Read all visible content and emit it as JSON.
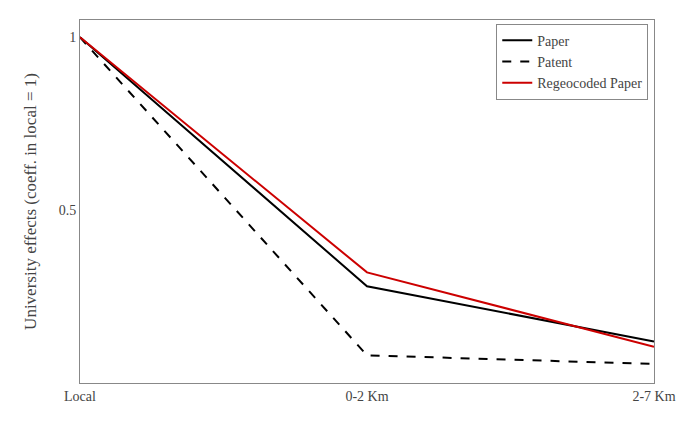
{
  "chart_data": {
    "type": "line",
    "categories": [
      "Local",
      "0-2 Km",
      "2-7 Km"
    ],
    "series": [
      {
        "name": "Paper",
        "values": [
          1.0,
          0.28,
          0.12
        ],
        "color": "#000000",
        "line_style": "solid"
      },
      {
        "name": "Patent",
        "values": [
          1.0,
          0.08,
          0.055
        ],
        "color": "#000000",
        "line_style": "dashed"
      },
      {
        "name": "Regeocoded Paper",
        "values": [
          1.0,
          0.32,
          0.105
        ],
        "color": "#cc0000",
        "line_style": "solid"
      }
    ],
    "ylabel": "University effects (coeff. in local = 1)",
    "ylim": [
      0.0,
      1.05
    ],
    "yticks": [
      0.5,
      1
    ],
    "grid": false,
    "legend": "upper right"
  }
}
